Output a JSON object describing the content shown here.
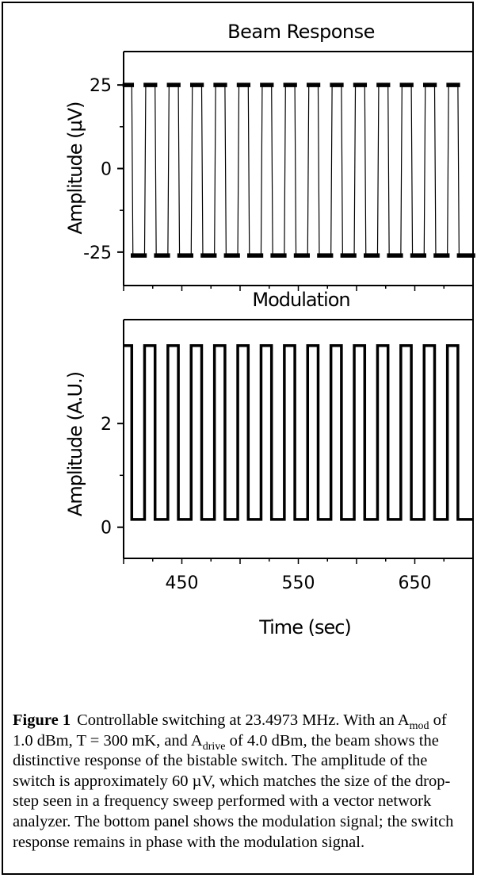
{
  "chart_data": [
    {
      "type": "line",
      "title": "Beam Response",
      "ylabel": "Amplitude (µV)",
      "xlabel": "",
      "xlim": [
        400,
        700
      ],
      "ylim": [
        -35,
        35
      ],
      "yticks": [
        25,
        0,
        -25
      ],
      "ytick_labels": [
        "25",
        "0",
        "-25"
      ],
      "grid": false,
      "series": [
        {
          "high_level": 25,
          "low_level": -26,
          "period": 20,
          "high_segments": [
            [
              401,
              407
            ],
            [
              419,
              427
            ],
            [
              439,
              447
            ],
            [
              459,
              467
            ],
            [
              479,
              487
            ],
            [
              499,
              507
            ],
            [
              519,
              527
            ],
            [
              539,
              547
            ],
            [
              559,
              567
            ],
            [
              579,
              587
            ],
            [
              599,
              607
            ],
            [
              619,
              627
            ],
            [
              639,
              647
            ],
            [
              659,
              667
            ],
            [
              679,
              687
            ]
          ],
          "low_segments": [
            [
              408,
              418
            ],
            [
              428,
              438
            ],
            [
              448,
              458
            ],
            [
              468,
              478
            ],
            [
              488,
              498
            ],
            [
              508,
              518
            ],
            [
              528,
              538
            ],
            [
              548,
              558
            ],
            [
              568,
              578
            ],
            [
              588,
              598
            ],
            [
              608,
              618
            ],
            [
              628,
              638
            ],
            [
              648,
              658
            ],
            [
              668,
              678
            ],
            [
              688,
              700
            ]
          ]
        }
      ]
    },
    {
      "type": "line",
      "title": "Modulation",
      "ylabel": "Amplitude (A.U.)",
      "xlabel": "Time (sec)",
      "xlim": [
        400,
        700
      ],
      "ylim": [
        -0.6,
        4.0
      ],
      "yticks": [
        2,
        0
      ],
      "ytick_labels": [
        "2",
        "0"
      ],
      "xticks": [
        450,
        550,
        650
      ],
      "xtick_labels": [
        "450",
        "550",
        "650"
      ],
      "grid": false,
      "series": [
        {
          "high_level": 3.5,
          "low_level": 0.15,
          "period": 20,
          "high_segments": [
            [
              400,
              407
            ],
            [
              418,
              427
            ],
            [
              438,
              447
            ],
            [
              458,
              467
            ],
            [
              478,
              487
            ],
            [
              498,
              507
            ],
            [
              518,
              527
            ],
            [
              538,
              547
            ],
            [
              558,
              567
            ],
            [
              578,
              587
            ],
            [
              598,
              607
            ],
            [
              618,
              627
            ],
            [
              638,
              647
            ],
            [
              658,
              667
            ],
            [
              678,
              687
            ]
          ],
          "low_segments": [
            [
              407,
              418
            ],
            [
              427,
              438
            ],
            [
              447,
              458
            ],
            [
              467,
              478
            ],
            [
              487,
              498
            ],
            [
              507,
              518
            ],
            [
              527,
              538
            ],
            [
              547,
              558
            ],
            [
              567,
              578
            ],
            [
              587,
              598
            ],
            [
              607,
              618
            ],
            [
              627,
              638
            ],
            [
              647,
              658
            ],
            [
              667,
              678
            ],
            [
              687,
              700
            ]
          ]
        }
      ]
    }
  ],
  "caption": {
    "label": "Figure 1",
    "parts": [
      "Controllable switching at 23.4973 MHz.  With an A",
      "mod",
      " of 1.0 dBm, T = 300 mK, and A",
      "drive",
      " of 4.0 dBm, the beam shows the distinctive response of the bistable switch.  The amplitude of the switch is approximately 60 µV, which matches the size of the drop-step seen in a frequency sweep performed with a vector network analyzer.  The bottom panel shows the modulation signal; the switch response remains in phase with the modulation signal."
    ]
  }
}
